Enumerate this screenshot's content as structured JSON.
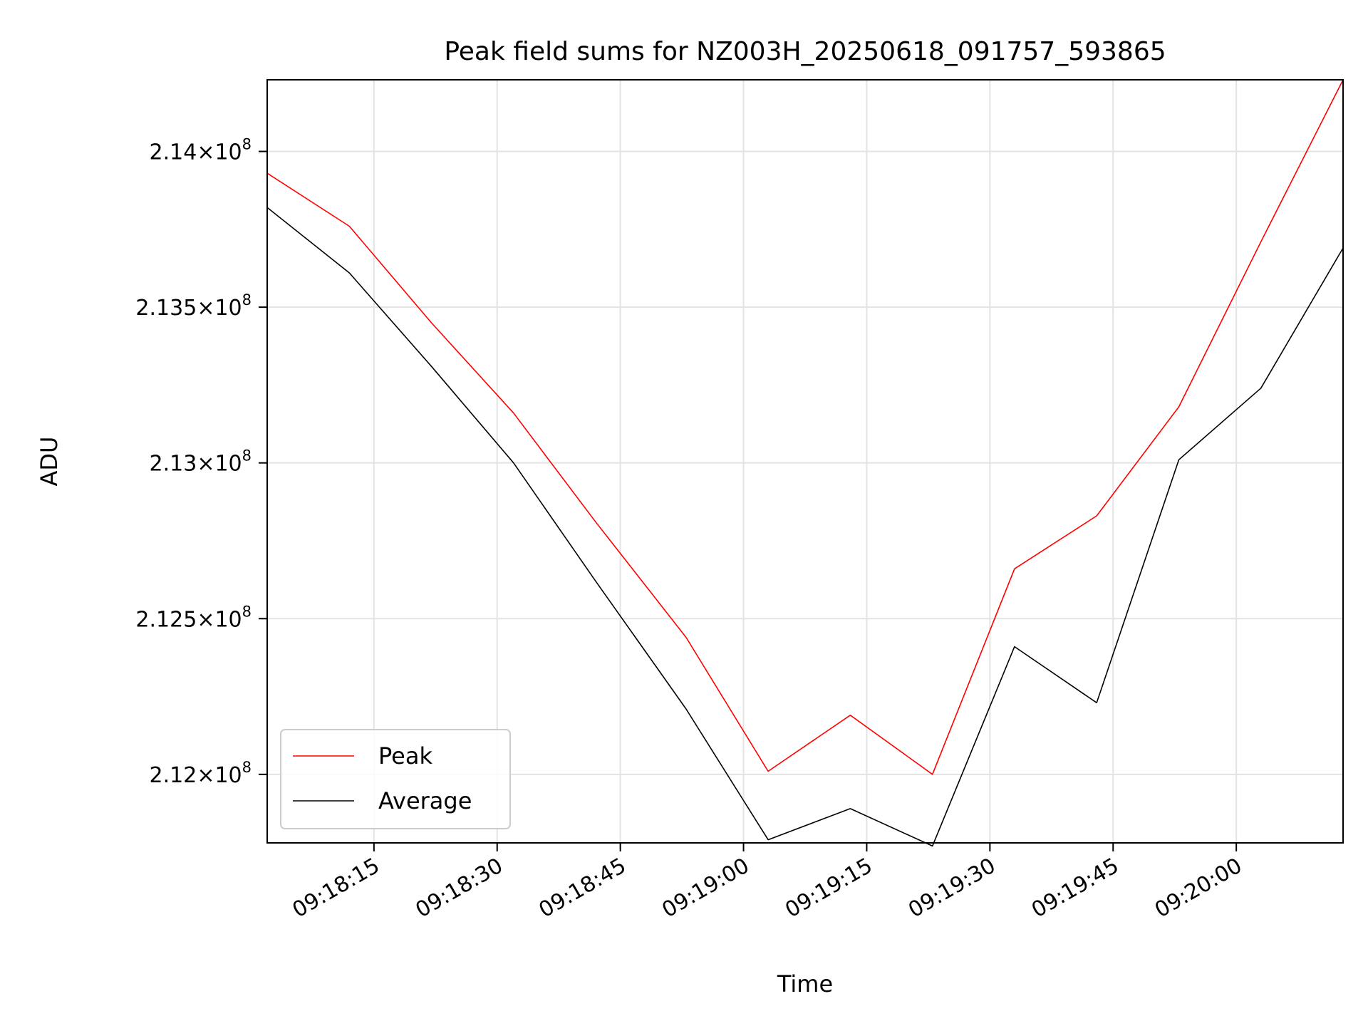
{
  "chart_data": {
    "type": "line",
    "title": "Peak field sums for NZ003H_20250618_091757_593865",
    "xlabel": "Time",
    "ylabel": "ADU",
    "x": [
      "09:18:02",
      "09:18:12",
      "09:18:22",
      "09:18:32",
      "09:18:42",
      "09:18:53",
      "09:19:03",
      "09:19:13",
      "09:19:23",
      "09:19:33",
      "09:19:43",
      "09:19:53",
      "09:20:03",
      "09:20:13"
    ],
    "xlim": [
      "09:18:02",
      "09:20:13"
    ],
    "ylim": [
      211780000,
      214230000
    ],
    "x_ticks": [
      "09:18:15",
      "09:18:30",
      "09:18:45",
      "09:19:00",
      "09:19:15",
      "09:19:30",
      "09:19:45",
      "09:20:00"
    ],
    "y_ticks": [
      {
        "value": 212000000,
        "mantissa": "2.12",
        "exp": "8"
      },
      {
        "value": 212500000,
        "mantissa": "2.125",
        "exp": "8"
      },
      {
        "value": 213000000,
        "mantissa": "2.13",
        "exp": "8"
      },
      {
        "value": 213500000,
        "mantissa": "2.135",
        "exp": "8"
      },
      {
        "value": 214000000,
        "mantissa": "2.14",
        "exp": "8"
      }
    ],
    "grid": true,
    "legend_position": "lower-left",
    "series": [
      {
        "name": "Peak",
        "color": "#ff0000",
        "values": [
          213930000,
          213760000,
          213450000,
          213160000,
          212810000,
          212440000,
          212010000,
          212190000,
          212000000,
          212660000,
          212830000,
          213180000,
          213710000,
          214230000
        ]
      },
      {
        "name": "Average",
        "color": "#000000",
        "values": [
          213820000,
          213610000,
          213310000,
          213000000,
          212620000,
          212210000,
          211790000,
          211890000,
          211770000,
          212410000,
          212230000,
          213010000,
          213240000,
          213690000
        ]
      }
    ]
  }
}
